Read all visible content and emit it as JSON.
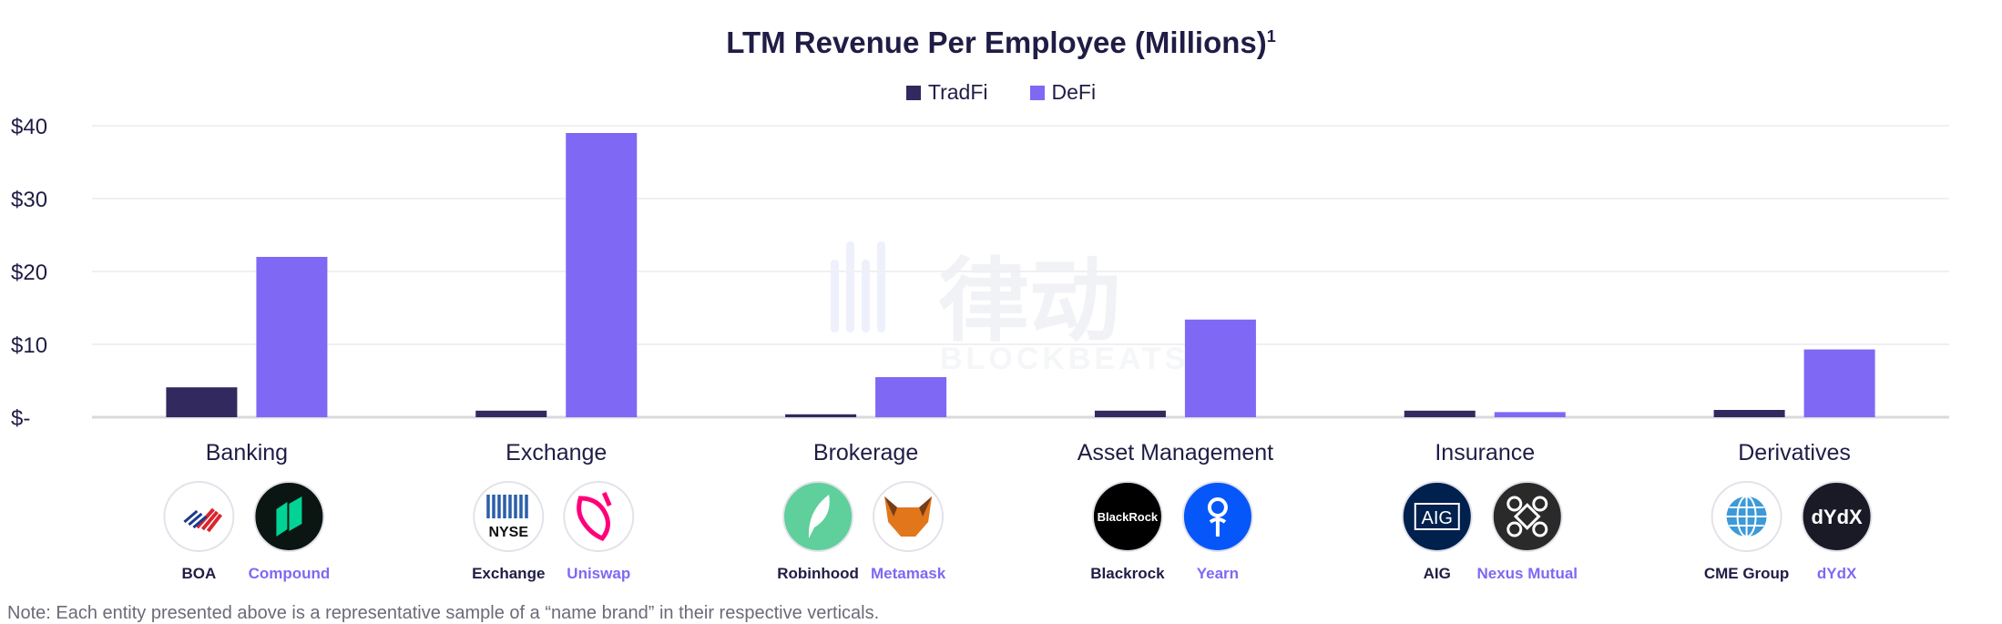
{
  "chart_data": {
    "type": "bar",
    "title": "LTM Revenue Per Employee (Millions)",
    "title_footnote": "1",
    "categories": [
      "Banking",
      "Exchange",
      "Brokerage",
      "Asset Management",
      "Insurance",
      "Derivatives"
    ],
    "series": [
      {
        "name": "TradFi",
        "color": "#32295f",
        "values": [
          4.1,
          0.9,
          0.4,
          0.9,
          0.9,
          1.0
        ]
      },
      {
        "name": "DeFi",
        "color": "#7f68f4",
        "values": [
          22.0,
          39.0,
          5.5,
          13.4,
          0.7,
          9.3
        ]
      }
    ],
    "yticks": [
      "$-",
      "$10",
      "$20",
      "$30",
      "$40"
    ],
    "ylim": [
      0,
      40
    ],
    "grid": true,
    "legend": "top-center",
    "xlabel": "",
    "ylabel": ""
  },
  "entities": [
    [
      {
        "label": "BOA",
        "icon": "boa-flag-icon",
        "bg": "#ffffff"
      },
      {
        "label": "Compound",
        "icon": "compound-icon",
        "bg": "#0b1613"
      }
    ],
    [
      {
        "label": "Exchange",
        "icon": "nyse-icon",
        "bg": "#ffffff"
      },
      {
        "label": "Uniswap",
        "icon": "uniswap-unicorn-icon",
        "bg": "#ffffff"
      }
    ],
    [
      {
        "label": "Robinhood",
        "icon": "robinhood-feather-icon",
        "bg": "#5fcf9c"
      },
      {
        "label": "Metamask",
        "icon": "metamask-fox-icon",
        "bg": "#ffffff"
      }
    ],
    [
      {
        "label": "Blackrock",
        "icon": "blackrock-icon",
        "bg": "#000000"
      },
      {
        "label": "Yearn",
        "icon": "yearn-icon",
        "bg": "#0657f9"
      }
    ],
    [
      {
        "label": "AIG",
        "icon": "aig-icon",
        "bg": "#00204e"
      },
      {
        "label": "Nexus Mutual",
        "icon": "nexus-mutual-icon",
        "bg": "#2a2a2a"
      }
    ],
    [
      {
        "label": "CME Group",
        "icon": "cme-globe-icon",
        "bg": "#ffffff"
      },
      {
        "label": "dYdX",
        "icon": "dydx-icon",
        "bg": "#1a1a27"
      }
    ]
  ],
  "logo_text": {
    "nyse": "NYSE",
    "blackrock": "BlackRock",
    "aig": "AIG",
    "dydx": "dYdX"
  },
  "watermark": {
    "cn": "律动",
    "en": "BLOCKBEATS"
  },
  "note": "Note: Each entity presented above is a representative sample of a “name brand” in their respective verticals."
}
